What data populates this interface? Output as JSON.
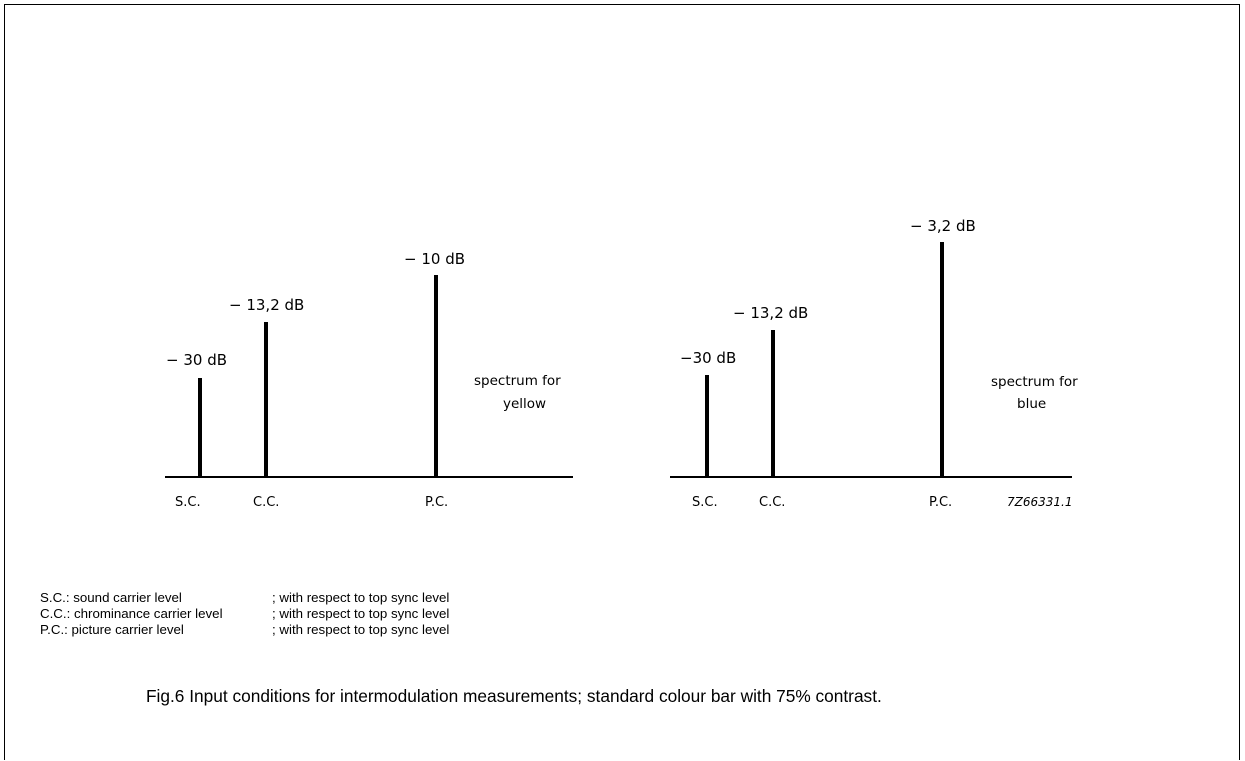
{
  "figure_caption": "Fig.6  Input conditions for intermodulation measurements; standard colour bar with 75% contrast.",
  "drawing_code": "7Z66331.1",
  "panels": [
    {
      "caption_line1": "spectrum for",
      "caption_line2": "yellow",
      "bars": [
        {
          "axis_label": "S.C.",
          "level_label": "− 30 dB"
        },
        {
          "axis_label": "C.C.",
          "level_label": "− 13,2 dB"
        },
        {
          "axis_label": "P.C.",
          "level_label": "− 10 dB"
        }
      ]
    },
    {
      "caption_line1": "spectrum for",
      "caption_line2": "blue",
      "bars": [
        {
          "axis_label": "S.C.",
          "level_label": "−30 dB"
        },
        {
          "axis_label": "C.C.",
          "level_label": "− 13,2 dB"
        },
        {
          "axis_label": "P.C.",
          "level_label": "− 3,2 dB"
        }
      ]
    }
  ],
  "legend": [
    {
      "term": "S.C.: sound carrier level",
      "note": "; with respect to top sync level"
    },
    {
      "term": "C.C.: chrominance carrier level",
      "note": "; with respect to top sync level"
    },
    {
      "term": "P.C.: picture carrier level",
      "note": "; with respect to top sync level"
    }
  ]
}
